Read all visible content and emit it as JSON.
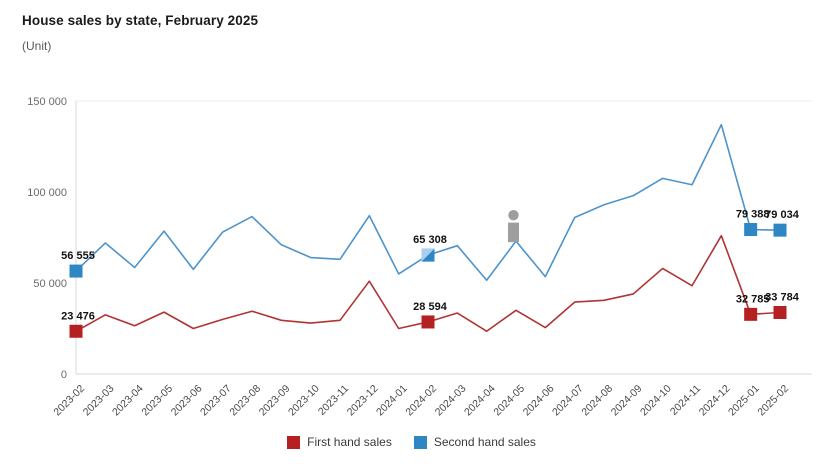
{
  "header": {
    "title": "House sales by state, February 2025",
    "subtitle": "(Unit)"
  },
  "chart_data": {
    "type": "line",
    "title": "House sales by state, February 2025",
    "unit_label": "(Unit)",
    "categories": [
      "2023-02",
      "2023-03",
      "2023-04",
      "2023-05",
      "2023-06",
      "2023-07",
      "2023-08",
      "2023-09",
      "2023-10",
      "2023-11",
      "2023-12",
      "2024-01",
      "2024-02",
      "2024-03",
      "2024-04",
      "2024-05",
      "2024-06",
      "2024-07",
      "2024-08",
      "2024-09",
      "2024-10",
      "2024-11",
      "2024-12",
      "2025-01",
      "2025-02"
    ],
    "ylim": [
      0,
      150000
    ],
    "yticks": [
      0,
      50000,
      100000,
      150000
    ],
    "grid": "top boundary line only, light gray",
    "legend_position": "bottom center",
    "series": [
      {
        "name": "First hand sales",
        "line_color": "#b13434",
        "marker_color": "#b42120",
        "values": [
          23476,
          32500,
          26500,
          34000,
          25000,
          30000,
          34500,
          29500,
          28000,
          29500,
          51000,
          25000,
          28594,
          33500,
          23500,
          35000,
          25500,
          39500,
          40500,
          44000,
          58000,
          48500,
          76000,
          32785,
          33784
        ],
        "label_indices": [
          0,
          12,
          23,
          24
        ],
        "labeled_values": [
          "23 476",
          "28 594",
          "32 785",
          "33 784"
        ]
      },
      {
        "name": "Second hand sales",
        "line_color": "#4e94cb",
        "marker_color": "#2e86c3",
        "values": [
          56555,
          72000,
          58500,
          78500,
          57500,
          78000,
          86500,
          71000,
          64000,
          63000,
          87000,
          55000,
          65308,
          70500,
          51500,
          73000,
          53500,
          86000,
          93000,
          98000,
          107500,
          104000,
          137000,
          79388,
          79034
        ],
        "label_indices": [
          0,
          12,
          23,
          24
        ],
        "labeled_values": [
          "56 555",
          "65 308",
          "79 388",
          "79 034"
        ],
        "selected_index": 12,
        "selected_highlight_color": "#a9cfee"
      }
    ],
    "annotation": {
      "icon": "info-annotation-icon",
      "color": "#9e9e9e",
      "series": "Second hand sales",
      "category": "2024-05"
    }
  },
  "legend": {
    "items": [
      {
        "label": "First hand sales",
        "color": "#b42120"
      },
      {
        "label": "Second hand sales",
        "color": "#2e86c3"
      }
    ]
  }
}
